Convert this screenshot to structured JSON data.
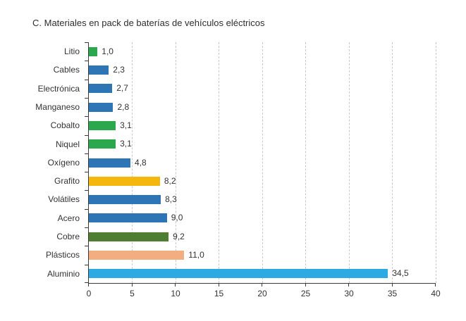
{
  "chart_data": {
    "type": "bar",
    "orientation": "horizontal",
    "title": "C. Materiales en pack de baterías de vehículos eléctricos",
    "categories": [
      "Litio",
      "Cables",
      "Electrónica",
      "Manganeso",
      "Cobalto",
      "Niquel",
      "Oxígeno",
      "Grafito",
      "Volátiles",
      "Acero",
      "Cobre",
      "Plásticos",
      "Aluminio"
    ],
    "values": [
      1.0,
      2.3,
      2.7,
      2.8,
      3.1,
      3.1,
      4.8,
      8.2,
      8.3,
      9.0,
      9.2,
      11.0,
      34.5
    ],
    "value_labels": [
      "1,0",
      "2,3",
      "2,7",
      "2,8",
      "3,1",
      "3,1",
      "4,8",
      "8,2",
      "8,3",
      "9,0",
      "9,2",
      "11,0",
      "34,5"
    ],
    "bar_colors": [
      "#2BA84D",
      "#2E75B6",
      "#2E75B6",
      "#2E75B6",
      "#2BA84D",
      "#2BA84D",
      "#2E75B6",
      "#F5B70D",
      "#2E75B6",
      "#2E75B6",
      "#4E7E32",
      "#F2AE80",
      "#2CAAE1"
    ],
    "xlim": [
      0,
      40
    ],
    "x_ticks": [
      "0",
      "5",
      "10",
      "15",
      "20",
      "25",
      "30",
      "35",
      "40"
    ],
    "xlabel": "",
    "ylabel": "",
    "grid": "vertical-dashed",
    "legend": "none"
  },
  "style_colors": {
    "background": "#FFFFFF",
    "axis": "#3A3A3A",
    "gridline": "#C9C9C9",
    "text": "#333333"
  }
}
